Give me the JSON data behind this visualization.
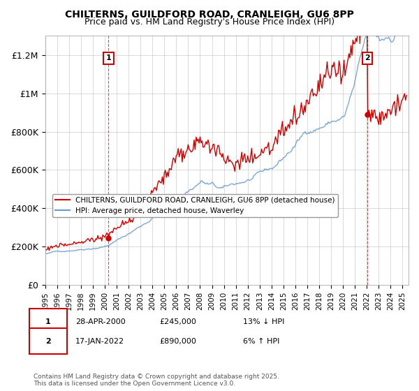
{
  "title": "CHILTERNS, GUILDFORD ROAD, CRANLEIGH, GU6 8PP",
  "subtitle": "Price paid vs. HM Land Registry's House Price Index (HPI)",
  "ylabel_ticks": [
    "£0",
    "£200K",
    "£400K",
    "£600K",
    "£800K",
    "£1M",
    "£1.2M"
  ],
  "ytick_values": [
    0,
    200000,
    400000,
    600000,
    800000,
    1000000,
    1200000
  ],
  "ylim": [
    0,
    1300000
  ],
  "xlim_start": 1995.0,
  "xlim_end": 2025.5,
  "hpi_color": "#6699cc",
  "price_color": "#cc0000",
  "sale1_date": 2000.32,
  "sale1_price": 245000,
  "sale1_label": "1",
  "sale2_date": 2022.05,
  "sale2_price": 890000,
  "sale2_label": "2",
  "legend_line1": "CHILTERNS, GUILDFORD ROAD, CRANLEIGH, GU6 8PP (detached house)",
  "legend_line2": "HPI: Average price, detached house, Waverley",
  "annotation1_date": "28-APR-2000",
  "annotation1_price": "£245,000",
  "annotation1_hpi": "13% ↓ HPI",
  "annotation2_date": "17-JAN-2022",
  "annotation2_price": "£890,000",
  "annotation2_hpi": "6% ↑ HPI",
  "footer": "Contains HM Land Registry data © Crown copyright and database right 2025.\nThis data is licensed under the Open Government Licence v3.0.",
  "background_color": "#f8f8f8",
  "plot_bg_color": "#ffffff"
}
